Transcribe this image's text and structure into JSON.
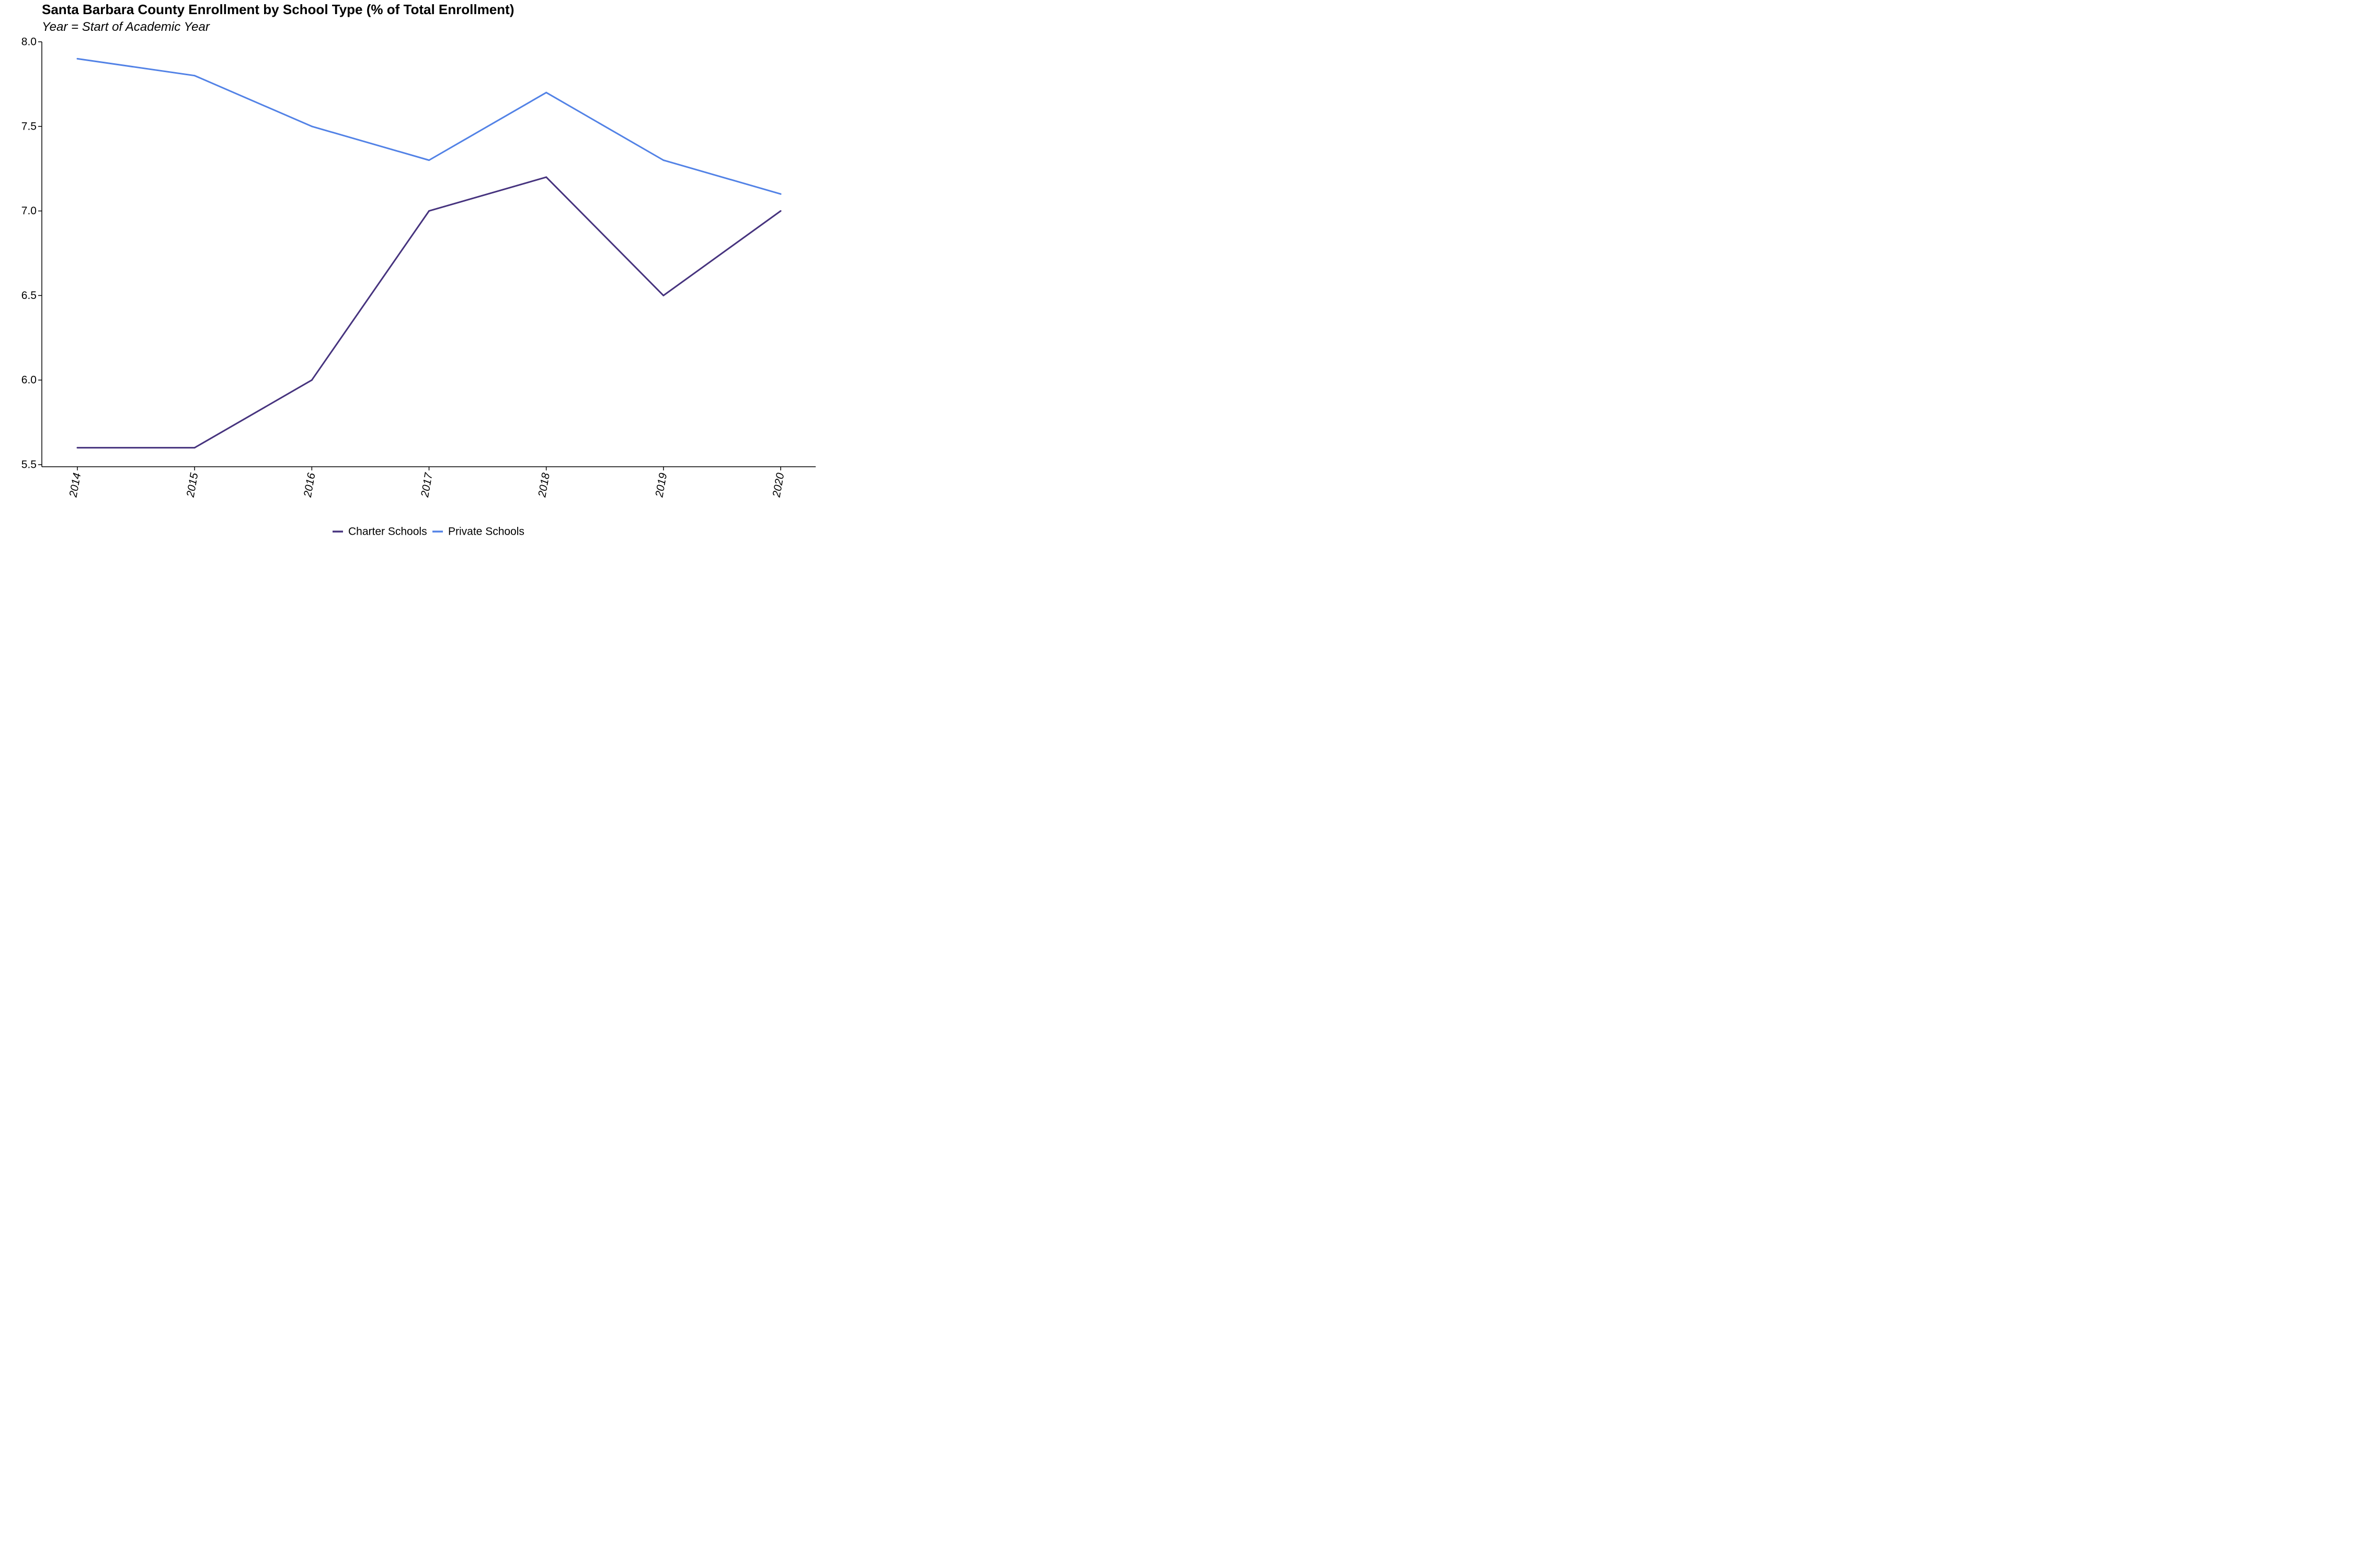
{
  "chart_data": {
    "type": "line",
    "title": "Santa Barbara County Enrollment by School Type (% of Total Enrollment)",
    "subtitle": "Year = Start of Academic Year",
    "xlabel": "",
    "ylabel": "",
    "x": [
      "2014",
      "2015",
      "2016",
      "2017",
      "2018",
      "2019",
      "2020"
    ],
    "ylim": [
      5.5,
      8.0
    ],
    "yticks": [
      "5.5",
      "6.0",
      "6.5",
      "7.0",
      "7.5",
      "8.0"
    ],
    "grid": false,
    "legend_position": "bottom-center",
    "series": [
      {
        "name": "Charter Schools",
        "color": "#46337e",
        "values": [
          5.6,
          5.6,
          6.0,
          7.0,
          7.2,
          6.5,
          7.0
        ]
      },
      {
        "name": "Private Schools",
        "color": "#5282e6",
        "values": [
          7.9,
          7.8,
          7.5,
          7.3,
          7.7,
          7.3,
          7.1
        ]
      }
    ]
  }
}
